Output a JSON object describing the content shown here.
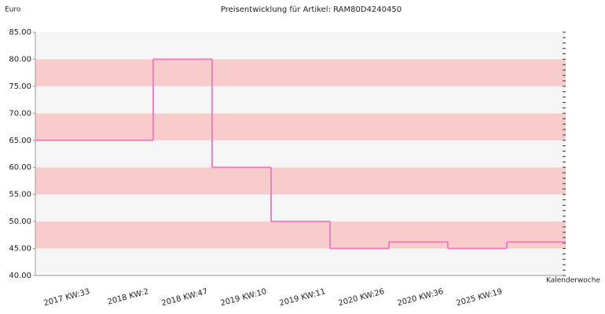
{
  "chart_data": {
    "type": "step",
    "title": "Preisentwicklung für Artikel: RAM80D4240450",
    "y_label": "Euro",
    "x_label": "Kalenderwoche",
    "categories": [
      "2017 KW:33",
      "2018 KW:2",
      "2018 KW:47",
      "2019 KW:10",
      "2019 KW:11",
      "2020 KW:26",
      "2020 KW:36",
      "2025 KW:19",
      null
    ],
    "values": [
      65,
      65,
      80,
      60,
      50,
      45,
      46.2,
      45,
      46.2
    ],
    "color": "#f27fc4",
    "band_colors": [
      "#f5f5f5",
      "#f9cccc"
    ],
    "ylim": [
      40,
      85
    ],
    "yticks": [
      {
        "value": 40,
        "label": "40.00"
      },
      {
        "value": 45,
        "label": "45.00"
      },
      {
        "value": 50,
        "label": "50.00"
      },
      {
        "value": 55,
        "label": "55.00"
      },
      {
        "value": 60,
        "label": "60.00"
      },
      {
        "value": 65,
        "label": "65.00"
      },
      {
        "value": 70,
        "label": "70.00"
      },
      {
        "value": 75,
        "label": "75.00"
      },
      {
        "value": 80,
        "label": "80.00"
      },
      {
        "value": 85,
        "label": "85.00"
      }
    ]
  }
}
